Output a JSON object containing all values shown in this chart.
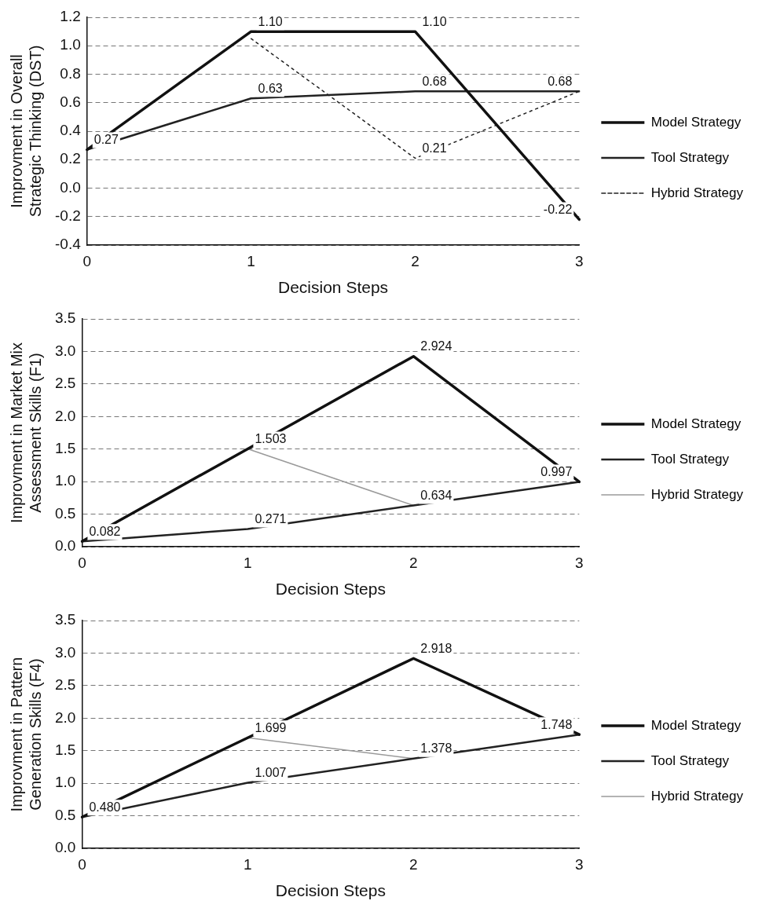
{
  "chart_data": [
    {
      "type": "line",
      "xlabel": "Decision Steps",
      "ylabel": "Improvment in Overall Strategic Thinking (DST)",
      "categories": [
        "0",
        "1",
        "2",
        "3"
      ],
      "ylim": [
        -0.4,
        1.2
      ],
      "yticks": [
        {
          "value": -0.4,
          "label": "-0.4"
        },
        {
          "value": -0.2,
          "label": "-0.2"
        },
        {
          "value": 0,
          "label": "0.0"
        },
        {
          "value": 0.2,
          "label": "0.2"
        },
        {
          "value": 0.4,
          "label": "0.4"
        },
        {
          "value": 0.6,
          "label": "0.6"
        },
        {
          "value": 0.8,
          "label": "0.8"
        },
        {
          "value": 1,
          "label": "1.0"
        },
        {
          "value": 1.2,
          "label": "1.2"
        }
      ],
      "grid": "y",
      "legend": "right",
      "marker": "none",
      "series": [
        {
          "name": "Model Strategy",
          "color": "#111111",
          "values": [
            0.27,
            1.1,
            1.1,
            -0.22
          ],
          "value_labels": [
            "0.27",
            "1.10",
            "1.10",
            "-0.22"
          ]
        },
        {
          "name": "Tool Strategy",
          "color": "#222222",
          "values": [
            0.27,
            0.63,
            0.68,
            0.68
          ],
          "value_labels": [
            null,
            "0.63",
            "0.68",
            "0.68"
          ]
        },
        {
          "name": "Hybrid Strategy",
          "color": "#222222",
          "line_style": "dotted",
          "values": [
            null,
            1.05,
            0.21,
            0.68
          ],
          "value_labels": [
            null,
            null,
            "0.21",
            null
          ]
        }
      ]
    },
    {
      "type": "line",
      "xlabel": "Decision Steps",
      "ylabel": "Improvment in Market Mix Assessment Skills (F1)",
      "categories": [
        "0",
        "1",
        "2",
        "3"
      ],
      "ylim": [
        0,
        3.5
      ],
      "yticks": [
        {
          "value": 0,
          "label": "0.0"
        },
        {
          "value": 0.5,
          "label": "0.5"
        },
        {
          "value": 1,
          "label": "1.0"
        },
        {
          "value": 1.5,
          "label": "1.5"
        },
        {
          "value": 2,
          "label": "2.0"
        },
        {
          "value": 2.5,
          "label": "2.5"
        },
        {
          "value": 3,
          "label": "3.0"
        },
        {
          "value": 3.5,
          "label": "3.5"
        }
      ],
      "grid": "y",
      "legend": "right",
      "marker": "none",
      "series": [
        {
          "name": "Model Strategy",
          "color": "#111111",
          "values": [
            0.082,
            1.503,
            2.924,
            0.997
          ],
          "value_labels": [
            "0.082",
            "1.503",
            "2.924",
            "0.997"
          ]
        },
        {
          "name": "Tool Strategy",
          "color": "#222222",
          "values": [
            0.082,
            0.271,
            0.634,
            0.997
          ],
          "value_labels": [
            null,
            "0.271",
            "0.634",
            null
          ]
        },
        {
          "name": "Hybrid Strategy",
          "color": "#9a9a9a",
          "values": [
            null,
            1.503,
            0.634,
            null
          ],
          "value_labels": [
            null,
            null,
            null,
            null
          ]
        }
      ]
    },
    {
      "type": "line",
      "xlabel": "Decision Steps",
      "ylabel": "Improvment in Pattern Generation Skills (F4)",
      "categories": [
        "0",
        "1",
        "2",
        "3"
      ],
      "ylim": [
        0,
        3.5
      ],
      "yticks": [
        {
          "value": 0,
          "label": "0.0"
        },
        {
          "value": 0.5,
          "label": "0.5"
        },
        {
          "value": 1,
          "label": "1.0"
        },
        {
          "value": 1.5,
          "label": "1.5"
        },
        {
          "value": 2,
          "label": "2.0"
        },
        {
          "value": 2.5,
          "label": "2.5"
        },
        {
          "value": 3,
          "label": "3.0"
        },
        {
          "value": 3.5,
          "label": "3.5"
        }
      ],
      "grid": "y",
      "legend": "right",
      "marker": "none",
      "series": [
        {
          "name": "Model Strategy",
          "color": "#111111",
          "values": [
            0.48,
            1.699,
            2.918,
            1.748
          ],
          "value_labels": [
            "0.480",
            "1.699",
            "2.918",
            "1.748"
          ]
        },
        {
          "name": "Tool Strategy",
          "color": "#222222",
          "values": [
            0.48,
            1.007,
            1.378,
            1.748
          ],
          "value_labels": [
            null,
            "1.007",
            "1.378",
            null
          ]
        },
        {
          "name": "Hybrid Strategy",
          "color": "#9a9a9a",
          "values": [
            null,
            1.699,
            1.378,
            null
          ],
          "value_labels": [
            null,
            null,
            null,
            null
          ]
        }
      ]
    }
  ]
}
